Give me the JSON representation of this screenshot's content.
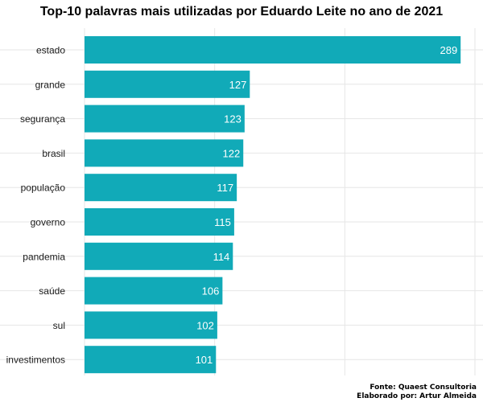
{
  "chart_data": {
    "type": "bar",
    "orientation": "horizontal",
    "title": "Top-10 palavras mais utilizadas por Eduardo Leite no ano de 2021",
    "categories": [
      "estado",
      "grande",
      "segurança",
      "brasil",
      "população",
      "governo",
      "pandemia",
      "saúde",
      "sul",
      "investimentos"
    ],
    "values": [
      289,
      127,
      123,
      122,
      117,
      115,
      114,
      106,
      102,
      101
    ],
    "xlim": [
      0,
      300
    ],
    "grid": true,
    "bar_color": "#11aab8",
    "label_color": "#ffffff"
  },
  "caption": {
    "source": "Fonte: Quaest Consultoria",
    "author": "Elaborado por: Artur Almeida"
  }
}
